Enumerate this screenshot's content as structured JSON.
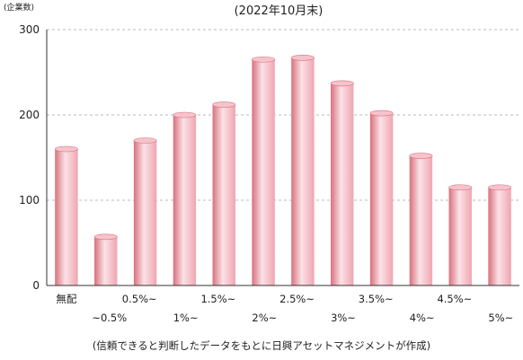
{
  "chart_data": {
    "type": "bar",
    "subtitle": "(2022年10月末)",
    "ylabel": "(企業数)",
    "ylim": [
      0,
      300
    ],
    "yticks": [
      0,
      100,
      200,
      300
    ],
    "grid": true,
    "categories_line1": [
      "無配",
      "",
      "0.5%~",
      "",
      "1.5%~",
      "",
      "2.5%~",
      "",
      "3.5%~",
      "",
      "4.5%~",
      ""
    ],
    "categories_line2": [
      "",
      "~0.5%",
      "",
      "1%~",
      "",
      "2%~",
      "",
      "3%~",
      "",
      "4%~",
      "",
      "5%~"
    ],
    "values": [
      160,
      57,
      170,
      200,
      212,
      265,
      267,
      237,
      202,
      152,
      115,
      115
    ],
    "source": "(信頼できると判断したデータをもとに日興アセットマネジメントが作成)"
  },
  "colors": {
    "bar_dark": "#d9707c",
    "bar_mid": "#f0a5b0",
    "bar_light": "#fbe2e7",
    "bar_top": "#f6c3cc",
    "grid": "#bbbbbb",
    "axis": "#333333",
    "plot_bg": "#ffffff"
  }
}
